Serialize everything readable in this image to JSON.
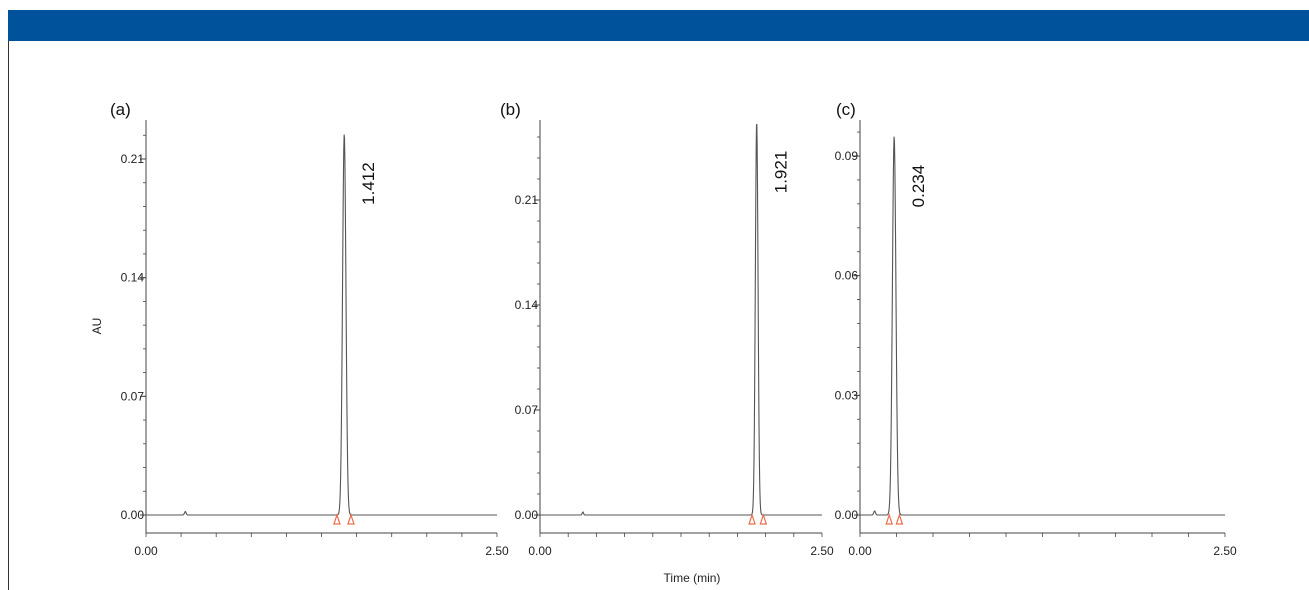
{
  "colors": {
    "header": "#00529b",
    "trace": "#555555",
    "axis": "#444444",
    "marker": "#e8704f"
  },
  "figure": {
    "ylabel": "AU",
    "xlabel": "Time (min)"
  },
  "chart_data": [
    {
      "type": "line",
      "panel_label": "(a)",
      "x_range": [
        0.0,
        2.5
      ],
      "x_tick_labels": [
        "0.00",
        "2.50"
      ],
      "y_range": [
        -0.005,
        0.235
      ],
      "y_ticks": [
        0.0,
        0.07,
        0.14,
        0.21
      ],
      "y_tick_labels": [
        "0.00",
        "0.07",
        "0.14",
        "0.21"
      ],
      "peak": {
        "retention_time": 1.412,
        "height": 0.225,
        "label": "1.412"
      },
      "minor_bump": {
        "time": 0.28,
        "height": 0.002
      },
      "integration_markers": [
        1.36,
        1.46
      ]
    },
    {
      "type": "line",
      "panel_label": "(b)",
      "x_range": [
        0.0,
        2.5
      ],
      "x_tick_labels": [
        "0.00",
        "2.50"
      ],
      "y_range": [
        -0.005,
        0.27
      ],
      "y_ticks": [
        0.0,
        0.07,
        0.14,
        0.21
      ],
      "y_tick_labels": [
        "0.00",
        "0.07",
        "0.14",
        "0.21"
      ],
      "peak": {
        "retention_time": 1.921,
        "height": 0.262,
        "label": "1.921"
      },
      "minor_bump": {
        "time": 0.38,
        "height": 0.002
      },
      "integration_markers": [
        1.88,
        1.98
      ]
    },
    {
      "type": "line",
      "panel_label": "(c)",
      "x_range": [
        0.0,
        2.5
      ],
      "x_tick_labels": [
        "0.00",
        "2.50"
      ],
      "y_range": [
        -0.003,
        0.099
      ],
      "y_ticks": [
        0.0,
        0.03,
        0.06,
        0.09
      ],
      "y_tick_labels": [
        "0.00",
        "0.03",
        "0.06",
        "0.09"
      ],
      "peak": {
        "retention_time": 0.234,
        "height": 0.095,
        "label": "0.234"
      },
      "minor_bump": {
        "time": 0.1,
        "height": 0.001
      },
      "integration_markers": [
        0.2,
        0.27
      ]
    }
  ]
}
